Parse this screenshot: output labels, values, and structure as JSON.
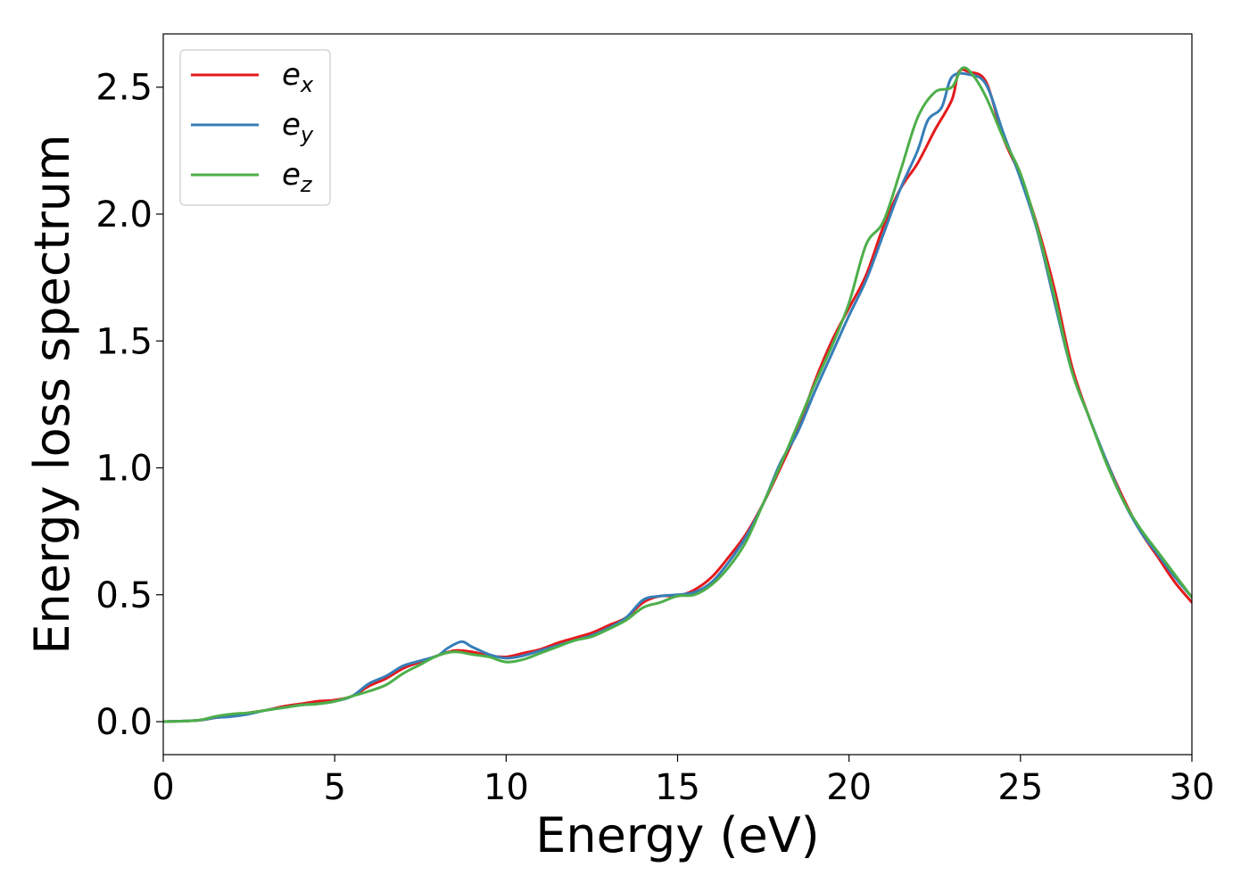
{
  "chart_data": {
    "type": "line",
    "title": "",
    "xlabel": "Energy (eV)",
    "ylabel": "Energy loss spectrum",
    "xlim": [
      0,
      30
    ],
    "ylim": [
      -0.13,
      2.71
    ],
    "xticks": [
      0,
      5,
      10,
      15,
      20,
      25,
      30
    ],
    "xtick_labels": [
      "0",
      "5",
      "10",
      "15",
      "20",
      "25",
      "30"
    ],
    "yticks": [
      0.0,
      0.5,
      1.0,
      1.5,
      2.0,
      2.5
    ],
    "ytick_labels": [
      "0.0",
      "0.5",
      "1.0",
      "1.5",
      "2.0",
      "2.5"
    ],
    "grid": false,
    "legend_position": "top-left",
    "series": [
      {
        "name": "e_x",
        "label_base": "e",
        "label_sub": "x",
        "color": "#e41a1c",
        "points": [
          [
            0,
            0.0
          ],
          [
            1,
            0.005
          ],
          [
            1.5,
            0.015
          ],
          [
            2,
            0.025
          ],
          [
            2.5,
            0.035
          ],
          [
            3,
            0.045
          ],
          [
            3.5,
            0.06
          ],
          [
            4,
            0.07
          ],
          [
            4.5,
            0.08
          ],
          [
            5,
            0.085
          ],
          [
            5.5,
            0.1
          ],
          [
            6,
            0.14
          ],
          [
            6.5,
            0.17
          ],
          [
            7,
            0.21
          ],
          [
            7.5,
            0.235
          ],
          [
            8,
            0.26
          ],
          [
            8.5,
            0.28
          ],
          [
            9,
            0.275
          ],
          [
            9.5,
            0.26
          ],
          [
            10,
            0.255
          ],
          [
            10.5,
            0.27
          ],
          [
            11,
            0.285
          ],
          [
            11.5,
            0.31
          ],
          [
            12,
            0.33
          ],
          [
            12.5,
            0.35
          ],
          [
            13,
            0.38
          ],
          [
            13.5,
            0.41
          ],
          [
            14,
            0.47
          ],
          [
            14.5,
            0.495
          ],
          [
            15,
            0.495
          ],
          [
            15.5,
            0.52
          ],
          [
            16,
            0.57
          ],
          [
            16.5,
            0.65
          ],
          [
            17,
            0.74
          ],
          [
            17.5,
            0.86
          ],
          [
            18,
            1.0
          ],
          [
            18.5,
            1.15
          ],
          [
            19,
            1.34
          ],
          [
            19.5,
            1.5
          ],
          [
            20,
            1.63
          ],
          [
            20.5,
            1.76
          ],
          [
            21,
            1.95
          ],
          [
            21.5,
            2.1
          ],
          [
            22,
            2.2
          ],
          [
            22.5,
            2.33
          ],
          [
            23,
            2.45
          ],
          [
            23.2,
            2.56
          ],
          [
            23.5,
            2.56
          ],
          [
            24,
            2.52
          ],
          [
            24.5,
            2.3
          ],
          [
            25,
            2.15
          ],
          [
            25.5,
            1.95
          ],
          [
            26,
            1.7
          ],
          [
            26.5,
            1.4
          ],
          [
            27,
            1.2
          ],
          [
            27.5,
            1.03
          ],
          [
            28,
            0.88
          ],
          [
            28.5,
            0.75
          ],
          [
            29,
            0.65
          ],
          [
            29.5,
            0.55
          ],
          [
            30,
            0.47
          ]
        ]
      },
      {
        "name": "e_y",
        "label_base": "e",
        "label_sub": "y",
        "color": "#377eb8",
        "points": [
          [
            0,
            0.0
          ],
          [
            1,
            0.005
          ],
          [
            1.5,
            0.015
          ],
          [
            2,
            0.02
          ],
          [
            2.5,
            0.03
          ],
          [
            3,
            0.045
          ],
          [
            3.5,
            0.055
          ],
          [
            4,
            0.065
          ],
          [
            4.5,
            0.07
          ],
          [
            5,
            0.08
          ],
          [
            5.5,
            0.1
          ],
          [
            6,
            0.15
          ],
          [
            6.5,
            0.18
          ],
          [
            7,
            0.22
          ],
          [
            7.5,
            0.24
          ],
          [
            8,
            0.26
          ],
          [
            8.3,
            0.29
          ],
          [
            8.7,
            0.315
          ],
          [
            9,
            0.295
          ],
          [
            9.5,
            0.265
          ],
          [
            10,
            0.25
          ],
          [
            10.5,
            0.26
          ],
          [
            11,
            0.28
          ],
          [
            11.5,
            0.3
          ],
          [
            12,
            0.32
          ],
          [
            12.5,
            0.34
          ],
          [
            13,
            0.37
          ],
          [
            13.5,
            0.41
          ],
          [
            14,
            0.48
          ],
          [
            14.5,
            0.495
          ],
          [
            15,
            0.5
          ],
          [
            15.5,
            0.51
          ],
          [
            16,
            0.55
          ],
          [
            16.5,
            0.63
          ],
          [
            17,
            0.73
          ],
          [
            17.5,
            0.86
          ],
          [
            18,
            1.02
          ],
          [
            18.5,
            1.14
          ],
          [
            19,
            1.3
          ],
          [
            19.5,
            1.45
          ],
          [
            20,
            1.6
          ],
          [
            20.5,
            1.74
          ],
          [
            21,
            1.92
          ],
          [
            21.5,
            2.1
          ],
          [
            22,
            2.25
          ],
          [
            22.3,
            2.37
          ],
          [
            22.7,
            2.42
          ],
          [
            23,
            2.54
          ],
          [
            23.5,
            2.55
          ],
          [
            24,
            2.51
          ],
          [
            24.5,
            2.32
          ],
          [
            25,
            2.14
          ],
          [
            25.5,
            1.93
          ],
          [
            26,
            1.65
          ],
          [
            26.5,
            1.38
          ],
          [
            27,
            1.2
          ],
          [
            27.5,
            1.03
          ],
          [
            28,
            0.87
          ],
          [
            28.5,
            0.75
          ],
          [
            29,
            0.66
          ],
          [
            29.5,
            0.57
          ],
          [
            30,
            0.49
          ]
        ]
      },
      {
        "name": "e_z",
        "label_base": "e",
        "label_sub": "z",
        "color": "#4daf4a",
        "points": [
          [
            0,
            0.0
          ],
          [
            1,
            0.005
          ],
          [
            1.5,
            0.02
          ],
          [
            2,
            0.03
          ],
          [
            2.5,
            0.035
          ],
          [
            3,
            0.045
          ],
          [
            3.5,
            0.055
          ],
          [
            4,
            0.065
          ],
          [
            4.5,
            0.07
          ],
          [
            5,
            0.08
          ],
          [
            5.5,
            0.1
          ],
          [
            6,
            0.12
          ],
          [
            6.5,
            0.145
          ],
          [
            7,
            0.19
          ],
          [
            7.5,
            0.225
          ],
          [
            8,
            0.26
          ],
          [
            8.5,
            0.275
          ],
          [
            9,
            0.265
          ],
          [
            9.5,
            0.255
          ],
          [
            10,
            0.235
          ],
          [
            10.5,
            0.245
          ],
          [
            11,
            0.27
          ],
          [
            11.5,
            0.295
          ],
          [
            12,
            0.32
          ],
          [
            12.5,
            0.335
          ],
          [
            13,
            0.365
          ],
          [
            13.5,
            0.4
          ],
          [
            14,
            0.45
          ],
          [
            14.5,
            0.47
          ],
          [
            15,
            0.495
          ],
          [
            15.5,
            0.5
          ],
          [
            16,
            0.54
          ],
          [
            16.5,
            0.61
          ],
          [
            17,
            0.71
          ],
          [
            17.5,
            0.86
          ],
          [
            18,
            1.01
          ],
          [
            18.5,
            1.17
          ],
          [
            19,
            1.33
          ],
          [
            19.5,
            1.48
          ],
          [
            20,
            1.65
          ],
          [
            20.5,
            1.88
          ],
          [
            21,
            1.97
          ],
          [
            21.5,
            2.17
          ],
          [
            22,
            2.38
          ],
          [
            22.5,
            2.48
          ],
          [
            23,
            2.5
          ],
          [
            23.3,
            2.575
          ],
          [
            23.6,
            2.55
          ],
          [
            24,
            2.46
          ],
          [
            24.5,
            2.3
          ],
          [
            25,
            2.16
          ],
          [
            25.5,
            1.94
          ],
          [
            26,
            1.67
          ],
          [
            26.5,
            1.38
          ],
          [
            27,
            1.2
          ],
          [
            27.5,
            1.02
          ],
          [
            28,
            0.87
          ],
          [
            28.5,
            0.76
          ],
          [
            29,
            0.67
          ],
          [
            29.5,
            0.58
          ],
          [
            30,
            0.49
          ]
        ]
      }
    ]
  }
}
